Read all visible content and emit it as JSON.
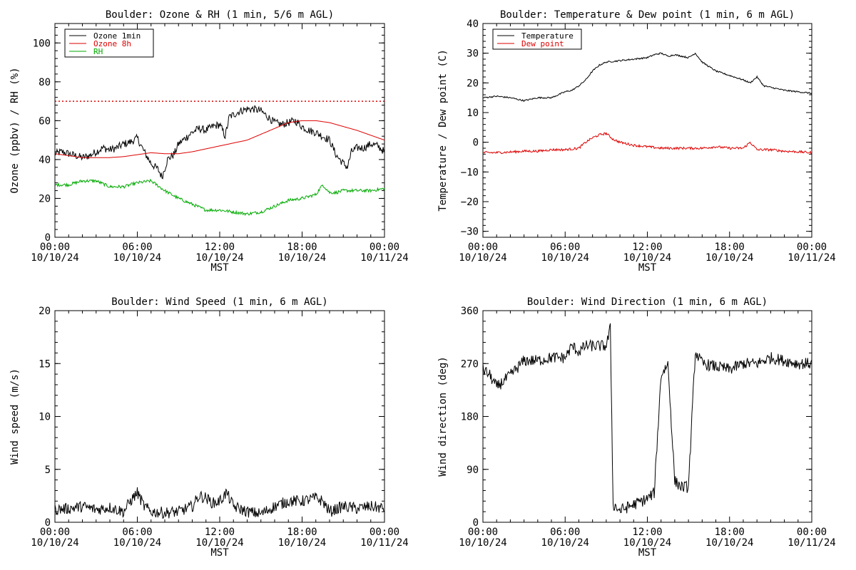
{
  "chart_data": [
    {
      "id": "ozone_rh",
      "type": "line",
      "title": "Boulder: Ozone & RH (1 min, 5/6 m AGL)",
      "xlabel": "MST",
      "ylabel": "Ozone (ppbv) / RH (%)",
      "ylim": [
        0,
        110
      ],
      "yticks": [
        "0",
        "20",
        "40",
        "60",
        "80",
        "100"
      ],
      "xlim": [
        0,
        24
      ],
      "xticks_time": [
        "00:00",
        "06:00",
        "12:00",
        "18:00",
        "00:00"
      ],
      "xticks_date": [
        "10/10/24",
        "10/10/24",
        "10/10/24",
        "10/10/24",
        "10/11/24"
      ],
      "legend_position": "top-left",
      "reference_line": {
        "y": 70,
        "color": "#dd0000",
        "style": "dotted"
      },
      "series": [
        {
          "name": "Ozone 1min",
          "color": "#000000",
          "noise": 2.0,
          "x": [
            0,
            0.5,
            1,
            1.5,
            2,
            2.5,
            3,
            3.5,
            4,
            4.5,
            5,
            5.5,
            6,
            6.5,
            7,
            7.5,
            7.8,
            8.2,
            8.7,
            9,
            9.5,
            10,
            10.5,
            11,
            11.5,
            12,
            12.4,
            12.7,
            13,
            13.5,
            14,
            14.5,
            15,
            15.5,
            16,
            16.5,
            17,
            17.5,
            18,
            18.5,
            19,
            19.5,
            20,
            20.5,
            21,
            21.3,
            21.6,
            22,
            22.5,
            23,
            23.5,
            24
          ],
          "y": [
            43,
            44,
            43,
            42,
            41,
            42,
            44,
            46,
            45,
            46,
            48,
            49,
            51,
            44,
            38,
            35,
            31,
            40,
            43,
            48,
            51,
            54,
            56,
            55,
            57,
            58,
            52,
            62,
            63,
            65,
            66,
            66,
            65,
            62,
            59,
            58,
            59,
            60,
            57,
            55,
            54,
            52,
            50,
            42,
            38,
            36,
            44,
            46,
            46,
            48,
            47,
            44
          ]
        },
        {
          "name": "Ozone 8h",
          "color": "#dd0000",
          "noise": 0,
          "x": [
            0,
            1,
            2,
            3,
            4,
            5,
            6,
            7,
            8,
            9,
            10,
            11,
            12,
            13,
            14,
            15,
            16,
            17,
            18,
            19,
            20,
            21,
            22,
            23,
            24
          ],
          "y": [
            43,
            42,
            41,
            41,
            41,
            41.5,
            42.5,
            43.5,
            43,
            43,
            44,
            45.5,
            47,
            48.5,
            50,
            53,
            56,
            59,
            60,
            60,
            59,
            57,
            55,
            52.5,
            50
          ]
        },
        {
          "name": "RH",
          "color": "#00aa00",
          "noise": 0.8,
          "x": [
            0,
            1,
            2,
            3,
            4,
            5,
            6,
            7,
            8,
            9,
            10,
            11,
            12,
            13,
            14,
            15,
            16,
            17,
            18,
            19,
            19.5,
            20,
            20.5,
            21,
            22,
            23,
            24
          ],
          "y": [
            27,
            27,
            29,
            29,
            26,
            26,
            28,
            29,
            24,
            20,
            17,
            14,
            14,
            13,
            12,
            13,
            16,
            19,
            20,
            22,
            27,
            23,
            23,
            24,
            24,
            24,
            25
          ]
        }
      ]
    },
    {
      "id": "temp_dew",
      "type": "line",
      "title": "Boulder: Temperature & Dew point (1 min, 6 m AGL)",
      "xlabel": "MST",
      "ylabel": "Temperature / Dew point (C)",
      "ylim": [
        -32,
        40
      ],
      "yticks": [
        "−30",
        "−20",
        "−10",
        "0",
        "10",
        "20",
        "30",
        "40"
      ],
      "xlim": [
        0,
        24
      ],
      "xticks_time": [
        "00:00",
        "06:00",
        "12:00",
        "18:00",
        "00:00"
      ],
      "xticks_date": [
        "10/10/24",
        "10/10/24",
        "10/10/24",
        "10/10/24",
        "10/11/24"
      ],
      "legend_position": "top-left",
      "series": [
        {
          "name": "Temperature",
          "color": "#000000",
          "noise": 0.25,
          "x": [
            0,
            1,
            2,
            3,
            4,
            5,
            6,
            6.5,
            7,
            7.5,
            8,
            8.5,
            9,
            10,
            11,
            12,
            12.5,
            13,
            13.5,
            14,
            14.5,
            15,
            15.5,
            16,
            17,
            18,
            19,
            19.5,
            20,
            20.5,
            21,
            22,
            23,
            24
          ],
          "y": [
            15,
            15.5,
            15,
            14,
            15,
            15,
            17,
            17.5,
            19,
            21,
            24,
            26,
            27,
            27.5,
            28,
            28.5,
            29.5,
            30,
            29,
            29.5,
            29,
            28.5,
            30,
            27,
            24,
            22.5,
            21,
            20,
            22,
            19,
            18.5,
            17.5,
            17,
            16.5
          ]
        },
        {
          "name": "Dew point",
          "color": "#dd0000",
          "noise": 0.4,
          "x": [
            0,
            1,
            2,
            3,
            4,
            5,
            6,
            7,
            7.5,
            8,
            8.5,
            9,
            9.5,
            10,
            11,
            12,
            13,
            14,
            15,
            16,
            17,
            18,
            19,
            19.5,
            20,
            21,
            22,
            23,
            24
          ],
          "y": [
            -3.5,
            -3.5,
            -3.3,
            -3,
            -3,
            -2.5,
            -2.5,
            -2,
            0,
            1.5,
            2.5,
            3,
            1,
            0,
            -1,
            -1.5,
            -2,
            -2,
            -2,
            -2,
            -1.5,
            -2,
            -2,
            0,
            -2.5,
            -2.5,
            -3,
            -3.2,
            -3.5
          ]
        }
      ]
    },
    {
      "id": "wind_speed",
      "type": "line",
      "title": "Boulder: Wind Speed (1 min, 6 m AGL)",
      "xlabel": "MST",
      "ylabel": "Wind speed (m/s)",
      "ylim": [
        0,
        20
      ],
      "yticks": [
        "0",
        "5",
        "10",
        "15",
        "20"
      ],
      "xlim": [
        0,
        24
      ],
      "xticks_time": [
        "00:00",
        "06:00",
        "12:00",
        "18:00",
        "00:00"
      ],
      "xticks_date": [
        "10/10/24",
        "10/10/24",
        "10/10/24",
        "10/10/24",
        "10/11/24"
      ],
      "series": [
        {
          "name": "",
          "color": "#000000",
          "noise": 0.55,
          "x": [
            0,
            1,
            2,
            3,
            4,
            5,
            5.5,
            6,
            6.5,
            7,
            8,
            9,
            10,
            10.5,
            11,
            11.5,
            12,
            12.5,
            13,
            14,
            15,
            16,
            17,
            18,
            19,
            19.5,
            20,
            21,
            22,
            23,
            24
          ],
          "y": [
            1.2,
            1.3,
            1.5,
            1.2,
            1.4,
            1.0,
            2.0,
            2.8,
            1.5,
            1.0,
            0.9,
            1.0,
            1.5,
            2.5,
            2.3,
            1.8,
            2.0,
            2.8,
            1.5,
            1.0,
            0.8,
            1.5,
            2.0,
            2.0,
            2.3,
            2.0,
            1.0,
            1.5,
            1.3,
            1.5,
            1.3
          ]
        }
      ]
    },
    {
      "id": "wind_dir",
      "type": "line",
      "title": "Boulder: Wind Direction (1 min, 6 m AGL)",
      "xlabel": "MST",
      "ylabel": "Wind direction (deg)",
      "ylim": [
        0,
        360
      ],
      "yticks": [
        "0",
        "90",
        "180",
        "270",
        "360"
      ],
      "xlim": [
        0,
        24
      ],
      "xticks_time": [
        "00:00",
        "06:00",
        "12:00",
        "18:00",
        "00:00"
      ],
      "xticks_date": [
        "10/10/24",
        "10/10/24",
        "10/10/24",
        "10/10/24",
        "10/11/24"
      ],
      "series": [
        {
          "name": "",
          "color": "#000000",
          "noise": 10,
          "x": [
            0,
            0.5,
            1,
            2,
            3,
            4,
            5,
            6,
            6.5,
            7,
            7.5,
            8,
            8.5,
            9,
            9.3,
            9.5,
            10,
            11,
            12,
            12.5,
            13,
            13.5,
            14,
            14.5,
            15,
            15.5,
            16,
            17,
            18,
            19,
            20,
            21,
            22,
            23,
            24
          ],
          "y": [
            260,
            250,
            230,
            250,
            275,
            275,
            280,
            280,
            300,
            290,
            300,
            300,
            300,
            300,
            330,
            30,
            20,
            30,
            40,
            50,
            250,
            270,
            70,
            60,
            60,
            290,
            270,
            265,
            260,
            270,
            270,
            280,
            275,
            270,
            270
          ]
        }
      ]
    }
  ]
}
